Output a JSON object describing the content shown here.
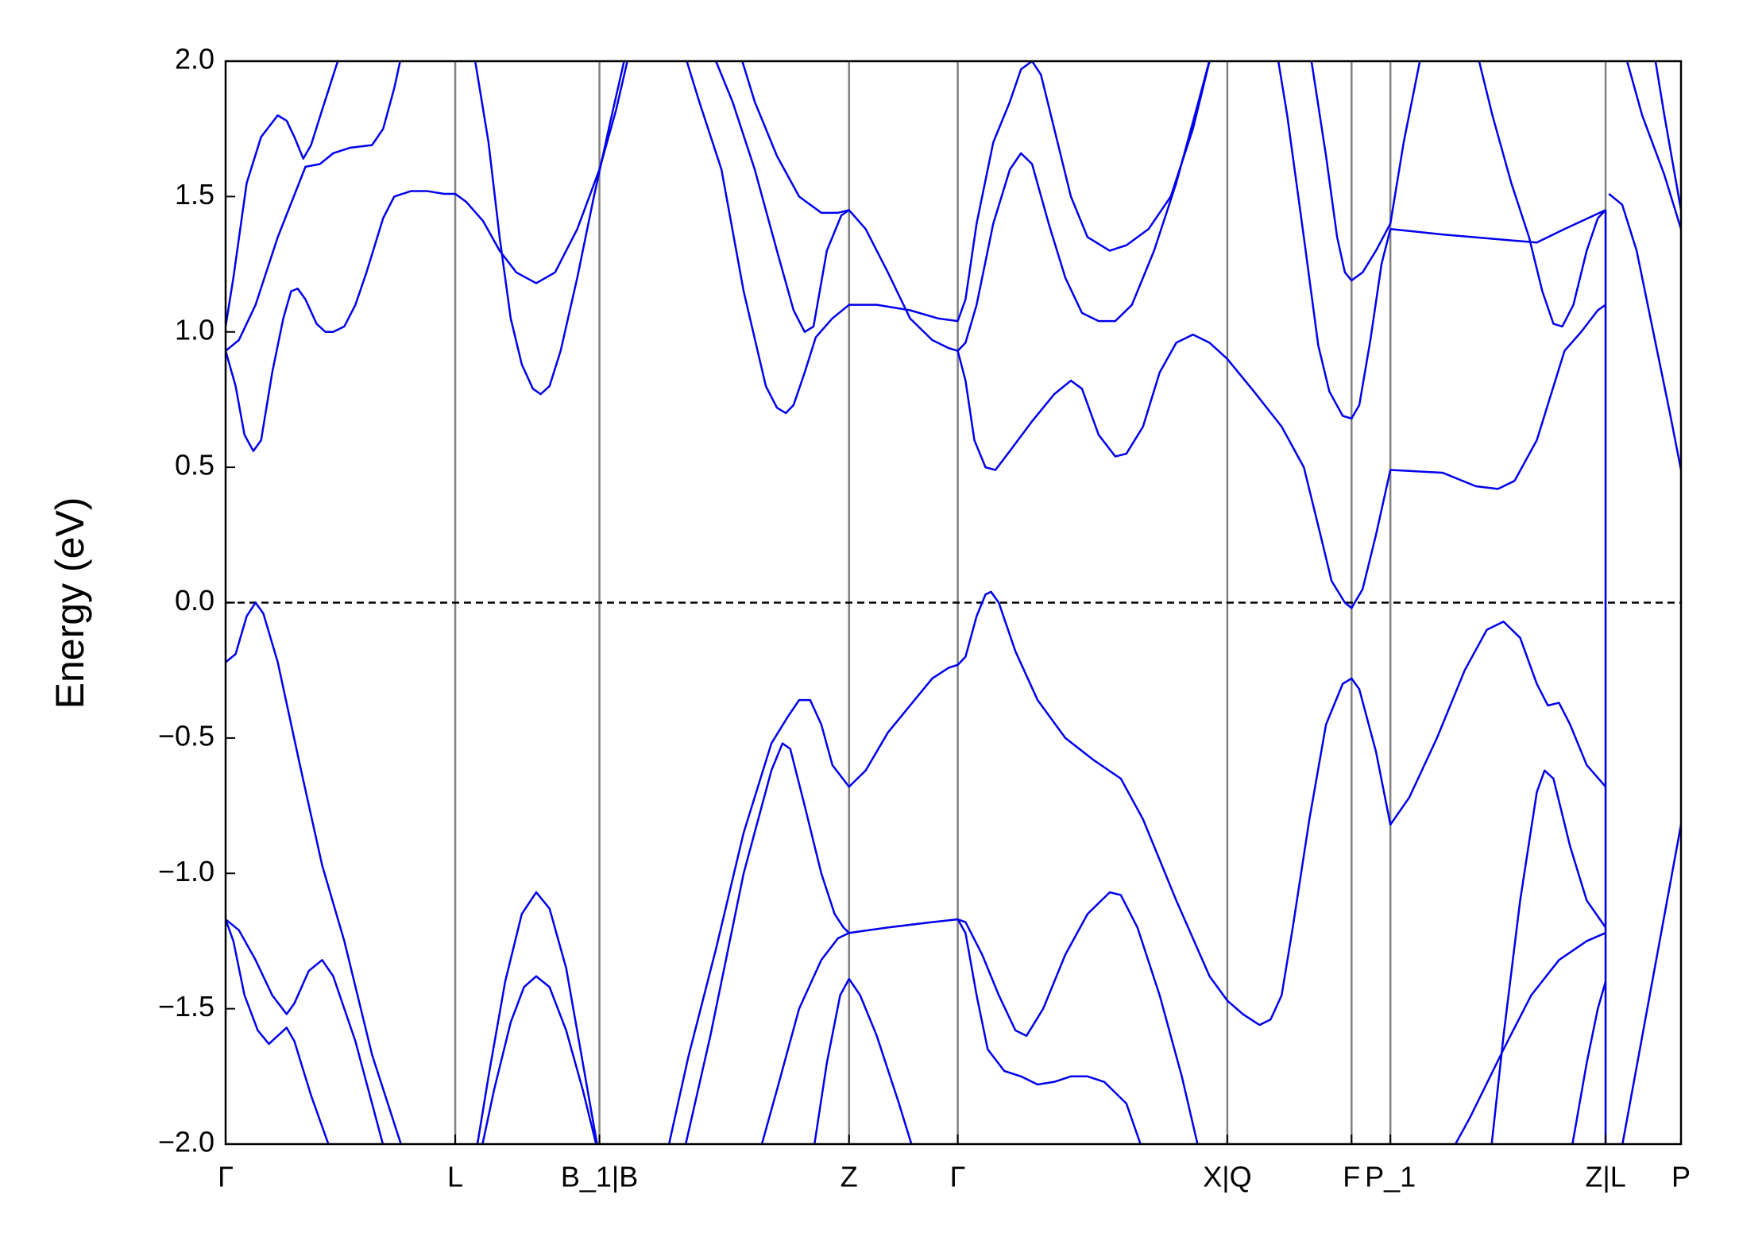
{
  "chart_data": {
    "type": "line",
    "y_label": "Energy (eV)",
    "color": "#0000ee",
    "fermi_level": 0,
    "xlim": [
      0,
      13.12
    ],
    "ylim": [
      -2.0,
      2.0
    ],
    "xticks": [
      {
        "value": 0,
        "label": "Γ"
      },
      {
        "value": 2.07,
        "label": "L"
      },
      {
        "value": 3.37,
        "label": "B_1|B"
      },
      {
        "value": 5.62,
        "label": "Z"
      },
      {
        "value": 6.6,
        "label": "Γ"
      },
      {
        "value": 9.03,
        "label": "X|Q"
      },
      {
        "value": 10.15,
        "label": "F"
      },
      {
        "value": 10.5,
        "label": "P_1"
      },
      {
        "value": 12.44,
        "label": "Z|L"
      },
      {
        "value": 13.12,
        "label": "P"
      }
    ],
    "yticks": [
      {
        "value": -2.0,
        "label": "−2.0"
      },
      {
        "value": -1.5,
        "label": "−1.5"
      },
      {
        "value": -1.0,
        "label": "−1.0"
      },
      {
        "value": -0.5,
        "label": "−0.5"
      },
      {
        "value": 0.0,
        "label": "0.0"
      },
      {
        "value": 0.5,
        "label": "0.5"
      },
      {
        "value": 1.0,
        "label": "1.0"
      },
      {
        "value": 1.5,
        "label": "1.5"
      },
      {
        "value": 2.0,
        "label": "2.0"
      }
    ],
    "series": [
      {
        "x": [
          0,
          0.07,
          0.19,
          0.32,
          0.47,
          0.55,
          0.62,
          0.7,
          0.77,
          0.87,
          1.05
        ],
        "values": [
          1.02,
          1.2,
          1.55,
          1.72,
          1.8,
          1.78,
          1.72,
          1.64,
          1.69,
          1.82,
          2.05
        ]
      },
      {
        "x": [
          0,
          0.12,
          0.27,
          0.47,
          0.72,
          0.85,
          0.97,
          1.12,
          1.32,
          1.42,
          1.52,
          1.6
        ],
        "values": [
          0.93,
          0.97,
          1.1,
          1.35,
          1.61,
          1.62,
          1.66,
          1.68,
          1.69,
          1.75,
          1.9,
          2.05
        ]
      },
      {
        "x": [
          0,
          0.09,
          0.17,
          0.25,
          0.32,
          0.42,
          0.52,
          0.59,
          0.65,
          0.72,
          0.82,
          0.9,
          0.97,
          1.07,
          1.17,
          1.27,
          1.42,
          1.52,
          1.67,
          1.82,
          1.97,
          2.07,
          2.17,
          2.32,
          2.47,
          2.62,
          2.8,
          2.97,
          3.17,
          3.37,
          3.52,
          3.65
        ],
        "values": [
          0.93,
          0.8,
          0.62,
          0.56,
          0.6,
          0.85,
          1.05,
          1.15,
          1.16,
          1.12,
          1.03,
          1.0,
          1.0,
          1.02,
          1.1,
          1.22,
          1.42,
          1.5,
          1.52,
          1.52,
          1.51,
          1.51,
          1.48,
          1.41,
          1.3,
          1.22,
          1.18,
          1.22,
          1.38,
          1.6,
          1.82,
          2.05
        ]
      },
      {
        "x": [
          2.23,
          2.37,
          2.47,
          2.57,
          2.67,
          2.77,
          2.84,
          2.92,
          3.02,
          3.17,
          3.32,
          3.47,
          3.62
        ],
        "values": [
          2.05,
          1.7,
          1.35,
          1.05,
          0.88,
          0.79,
          0.77,
          0.8,
          0.93,
          1.2,
          1.5,
          1.78,
          2.05
        ]
      },
      {
        "x": [
          0,
          0.09,
          0.19,
          0.27,
          0.34,
          0.47,
          0.67,
          0.87,
          1.07,
          1.32,
          1.47,
          1.62
        ],
        "values": [
          -0.22,
          -0.19,
          -0.05,
          0.0,
          -0.04,
          -0.22,
          -0.6,
          -0.97,
          -1.25,
          -1.67,
          -1.86,
          -2.05
        ]
      },
      {
        "x": [
          0,
          0.12,
          0.27,
          0.42,
          0.55,
          0.62,
          0.75,
          0.87,
          0.97,
          1.17,
          1.32,
          1.45
        ],
        "values": [
          -1.17,
          -1.21,
          -1.32,
          -1.45,
          -1.52,
          -1.48,
          -1.36,
          -1.32,
          -1.38,
          -1.62,
          -1.85,
          -2.05
        ]
      },
      {
        "x": [
          0,
          0.07,
          0.17,
          0.29,
          0.39,
          0.47,
          0.55,
          0.62,
          0.77,
          0.97
        ],
        "values": [
          -1.17,
          -1.25,
          -1.45,
          -1.58,
          -1.63,
          -1.6,
          -1.57,
          -1.62,
          -1.82,
          -2.05
        ]
      },
      {
        "x": [
          2.25,
          2.37,
          2.52,
          2.67,
          2.8,
          2.92,
          3.07,
          3.22,
          3.37
        ],
        "values": [
          -2.05,
          -1.75,
          -1.4,
          -1.15,
          -1.07,
          -1.13,
          -1.35,
          -1.7,
          -2.05
        ]
      },
      {
        "x": [
          2.29,
          2.42,
          2.57,
          2.69,
          2.8,
          2.92,
          3.07,
          3.22,
          3.37
        ],
        "values": [
          -2.05,
          -1.8,
          -1.55,
          -1.42,
          -1.38,
          -1.42,
          -1.58,
          -1.8,
          -2.05
        ]
      },
      {
        "x": [
          4.12,
          4.27,
          4.47,
          4.67,
          4.87,
          4.97,
          5.05,
          5.12,
          5.22,
          5.32,
          5.47,
          5.62,
          5.87,
          6.17,
          6.42,
          6.6,
          6.67,
          6.77,
          6.92,
          7.07,
          7.17,
          7.27,
          7.35,
          7.47,
          7.62,
          7.77,
          7.97,
          8.12,
          8.32,
          8.52,
          8.72,
          8.9
        ],
        "values": [
          2.05,
          1.85,
          1.6,
          1.15,
          0.8,
          0.72,
          0.7,
          0.73,
          0.85,
          0.98,
          1.05,
          1.1,
          1.1,
          1.08,
          1.05,
          1.04,
          1.12,
          1.4,
          1.7,
          1.85,
          1.97,
          2.0,
          1.95,
          1.75,
          1.5,
          1.35,
          1.3,
          1.32,
          1.38,
          1.5,
          1.75,
          2.05
        ]
      },
      {
        "x": [
          4.37,
          4.57,
          4.77,
          4.97,
          5.12,
          5.22,
          5.3,
          5.42,
          5.55,
          5.62,
          5.77,
          5.97,
          6.17,
          6.37,
          6.52,
          6.6,
          6.67,
          6.77,
          6.92,
          7.07,
          7.17,
          7.27,
          7.42,
          7.57,
          7.72,
          7.87,
          8.02,
          8.17,
          8.37,
          8.57,
          8.77,
          8.9
        ],
        "values": [
          2.05,
          1.85,
          1.6,
          1.3,
          1.08,
          1.0,
          1.02,
          1.3,
          1.43,
          1.45,
          1.38,
          1.22,
          1.05,
          0.97,
          0.94,
          0.93,
          0.96,
          1.1,
          1.4,
          1.6,
          1.66,
          1.62,
          1.4,
          1.2,
          1.07,
          1.04,
          1.04,
          1.1,
          1.3,
          1.55,
          1.85,
          2.05
        ]
      },
      {
        "x": [
          4.62,
          4.77,
          4.97,
          5.17,
          5.37,
          5.52,
          5.62
        ],
        "values": [
          2.05,
          1.85,
          1.65,
          1.5,
          1.44,
          1.44,
          1.45
        ]
      },
      {
        "x": [
          6.6,
          6.67,
          6.75,
          6.85,
          6.94,
          7.07,
          7.27,
          7.47,
          7.62,
          7.72,
          7.87,
          8.02,
          8.12,
          8.27,
          8.42,
          8.57,
          8.72,
          8.87,
          9.03,
          9.27,
          9.52,
          9.72,
          9.87,
          9.97,
          10.09,
          10.15,
          10.25,
          10.37,
          10.5,
          10.97,
          11.27,
          11.47,
          11.62,
          11.82,
          12.07,
          12.22,
          12.37,
          12.44
        ],
        "values": [
          0.93,
          0.82,
          0.6,
          0.5,
          0.49,
          0.56,
          0.67,
          0.77,
          0.82,
          0.79,
          0.62,
          0.54,
          0.55,
          0.65,
          0.85,
          0.96,
          0.99,
          0.96,
          0.9,
          0.78,
          0.65,
          0.5,
          0.25,
          0.08,
          0.0,
          -0.02,
          0.05,
          0.25,
          0.49,
          0.48,
          0.43,
          0.42,
          0.45,
          0.6,
          0.93,
          1.0,
          1.08,
          1.1
        ]
      },
      {
        "x": [
          12.47,
          12.59,
          12.72,
          12.87,
          13.02,
          13.12
        ],
        "values": [
          1.51,
          1.47,
          1.3,
          1.0,
          0.7,
          0.49
        ]
      },
      {
        "x": [
          9.47,
          9.57,
          9.72,
          9.85,
          9.95,
          10.07,
          10.15,
          10.22,
          10.32,
          10.42,
          10.5,
          10.97,
          11.82,
          12.07,
          12.44
        ],
        "values": [
          2.05,
          1.8,
          1.35,
          0.95,
          0.78,
          0.69,
          0.68,
          0.73,
          0.97,
          1.25,
          1.38,
          1.36,
          1.33,
          1.38,
          1.45
        ]
      },
      {
        "x": [
          9.77,
          9.92,
          10.02,
          10.09,
          10.15,
          10.25,
          10.37,
          10.5,
          10.62,
          10.79
        ],
        "values": [
          2.05,
          1.65,
          1.35,
          1.22,
          1.19,
          1.22,
          1.3,
          1.4,
          1.7,
          2.05
        ]
      },
      {
        "x": [
          11.27,
          11.42,
          11.59,
          11.75,
          11.87,
          11.97,
          12.05,
          12.15,
          12.27,
          12.37,
          12.44
        ],
        "values": [
          2.05,
          1.8,
          1.55,
          1.35,
          1.15,
          1.03,
          1.02,
          1.1,
          1.3,
          1.42,
          1.45
        ]
      },
      {
        "x": [
          12.6,
          12.77,
          12.97,
          13.12
        ],
        "values": [
          2.05,
          1.8,
          1.58,
          1.38
        ]
      },
      {
        "x": [
          12.87,
          12.97,
          13.12
        ],
        "values": [
          2.05,
          1.8,
          1.45
        ]
      },
      {
        "x": [
          3.97,
          4.17,
          4.42,
          4.67,
          4.92,
          5.07,
          5.17,
          5.27,
          5.37,
          5.47,
          5.62,
          5.77,
          5.97,
          6.17,
          6.37,
          6.52,
          6.6,
          6.67,
          6.77,
          6.85,
          6.9,
          6.97,
          7.12,
          7.32,
          7.57,
          7.82,
          8.07,
          8.27,
          8.57,
          8.87,
          9.03,
          9.17,
          9.32,
          9.42,
          9.52,
          9.62,
          9.77,
          9.92,
          10.07,
          10.15,
          10.22,
          10.37,
          10.5,
          10.67,
          10.92,
          11.17,
          11.37,
          11.52,
          11.67,
          11.82,
          11.92,
          12.02,
          12.12,
          12.27,
          12.44
        ],
        "values": [
          -2.05,
          -1.68,
          -1.28,
          -0.85,
          -0.52,
          -0.42,
          -0.36,
          -0.36,
          -0.45,
          -0.6,
          -0.68,
          -0.62,
          -0.48,
          -0.38,
          -0.28,
          -0.24,
          -0.23,
          -0.2,
          -0.05,
          0.03,
          0.04,
          0.0,
          -0.18,
          -0.36,
          -0.5,
          -0.58,
          -0.65,
          -0.8,
          -1.1,
          -1.38,
          -1.47,
          -1.52,
          -1.56,
          -1.54,
          -1.45,
          -1.2,
          -0.8,
          -0.45,
          -0.3,
          -0.28,
          -0.32,
          -0.55,
          -0.82,
          -0.72,
          -0.5,
          -0.25,
          -0.1,
          -0.07,
          -0.13,
          -0.3,
          -0.38,
          -0.37,
          -0.45,
          -0.6,
          -0.68
        ]
      },
      {
        "x": [
          4.12,
          4.37,
          4.67,
          4.92,
          5.02,
          5.09,
          5.22,
          5.37,
          5.49,
          5.57,
          5.62,
          5.97,
          6.37,
          6.6,
          6.67,
          6.82,
          6.97,
          7.12,
          7.22,
          7.37,
          7.57,
          7.77,
          7.97,
          8.07,
          8.22,
          8.42,
          8.62,
          8.79
        ],
        "values": [
          -2.05,
          -1.6,
          -1.0,
          -0.62,
          -0.52,
          -0.54,
          -0.75,
          -1.0,
          -1.15,
          -1.2,
          -1.22,
          -1.2,
          -1.18,
          -1.17,
          -1.18,
          -1.3,
          -1.45,
          -1.58,
          -1.6,
          -1.5,
          -1.3,
          -1.15,
          -1.07,
          -1.08,
          -1.2,
          -1.45,
          -1.75,
          -2.05
        ]
      },
      {
        "x": [
          4.8,
          4.97,
          5.17,
          5.37,
          5.52,
          5.62
        ],
        "values": [
          -2.05,
          -1.8,
          -1.5,
          -1.32,
          -1.24,
          -1.22
        ]
      },
      {
        "x": [
          6.6,
          6.67,
          6.77,
          6.87,
          7.02,
          7.17,
          7.32,
          7.47,
          7.62,
          7.77,
          7.92,
          8.12,
          8.29
        ],
        "values": [
          -1.17,
          -1.22,
          -1.45,
          -1.65,
          -1.73,
          -1.75,
          -1.78,
          -1.77,
          -1.75,
          -1.75,
          -1.77,
          -1.85,
          -2.05
        ]
      },
      {
        "x": [
          5.29,
          5.42,
          5.54,
          5.62,
          5.72,
          5.87,
          6.07,
          6.22
        ],
        "values": [
          -2.05,
          -1.7,
          -1.45,
          -1.39,
          -1.45,
          -1.6,
          -1.85,
          -2.05
        ]
      },
      {
        "x": [
          11.02,
          11.22,
          11.52,
          11.77,
          12.02,
          12.27,
          12.44
        ],
        "values": [
          -2.05,
          -1.9,
          -1.65,
          -1.45,
          -1.32,
          -1.25,
          -1.22
        ]
      },
      {
        "x": [
          11.4,
          11.52,
          11.67,
          11.82,
          11.89,
          11.97,
          12.12,
          12.27,
          12.44
        ],
        "values": [
          -2.05,
          -1.6,
          -1.1,
          -0.7,
          -0.62,
          -0.65,
          -0.9,
          -1.1,
          -1.2
        ]
      },
      {
        "x": [
          12.12,
          12.27,
          12.37,
          12.44
        ],
        "values": [
          -2.05,
          -1.7,
          -1.5,
          -1.4
        ]
      },
      {
        "x": [
          12.44,
          12.44
        ],
        "values": [
          1.45,
          -2.05
        ]
      },
      {
        "x": [
          12.57,
          13.12
        ],
        "values": [
          -2.05,
          -0.82
        ]
      }
    ]
  }
}
